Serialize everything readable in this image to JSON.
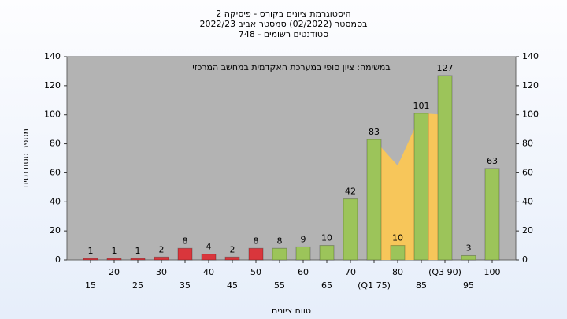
{
  "chart_data": {
    "type": "bar",
    "title": [
      "היסטוגרמת ציונים בקורס - פיסיקה 2",
      "בסמסטר  (02/2022)  סמסטר אביב 2022/23",
      "סטודנטים רשומים - 748"
    ],
    "annotation": "במשימה: ציון סופי במערכת האקדמית במחשב המרכזי",
    "x_label": "טווח ציונים",
    "y_label": "מספר סטודנטים",
    "categories": [
      "15",
      "20",
      "25",
      "30",
      "35",
      "40",
      "45",
      "50",
      "55",
      "60",
      "65",
      "70",
      "(Q1 75)",
      "80",
      "85",
      "(Q3 90)",
      "95",
      "100"
    ],
    "values": [
      1,
      1,
      1,
      2,
      8,
      4,
      2,
      8,
      8,
      9,
      10,
      42,
      83,
      10,
      101,
      127,
      3,
      63
    ],
    "colors": [
      "#d9363c",
      "#d9363c",
      "#d9363c",
      "#d9363c",
      "#d9363c",
      "#d9363c",
      "#d9363c",
      "#d9363c",
      "#9cc45a",
      "#9cc45a",
      "#9cc45a",
      "#9cc45a",
      "#9cc45a",
      "#9cc45a",
      "#9cc45a",
      "#9cc45a",
      "#9cc45a",
      "#9cc45a"
    ],
    "band": {
      "color": "#f7c65a",
      "values": [
        null,
        null,
        null,
        null,
        null,
        null,
        null,
        null,
        null,
        null,
        null,
        null,
        83,
        65,
        101,
        100,
        null,
        null
      ]
    },
    "ylim": [
      0,
      140
    ],
    "yticks": [
      0,
      20,
      40,
      60,
      80,
      100,
      120,
      140
    ],
    "y2lim": [
      0,
      140
    ],
    "y2ticks": [
      0,
      20,
      40,
      60,
      80,
      100,
      120,
      140
    ],
    "grid": false
  }
}
